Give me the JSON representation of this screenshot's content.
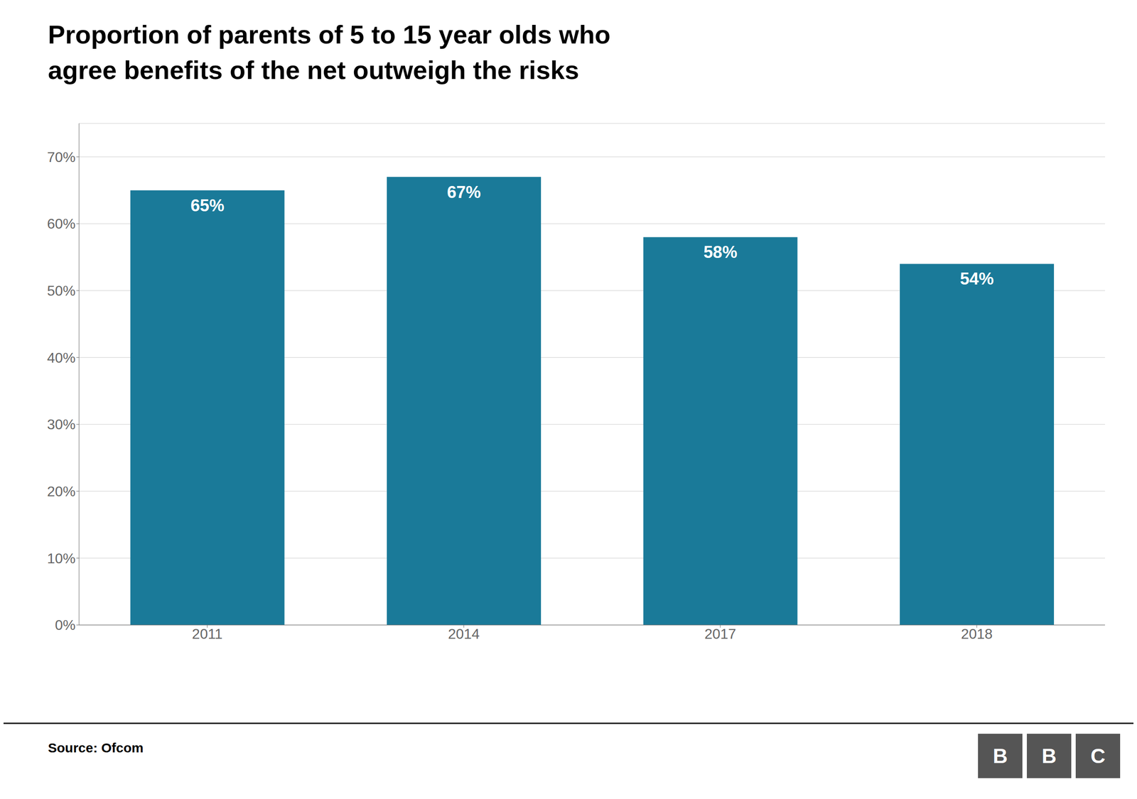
{
  "chart_data": {
    "type": "bar",
    "title": "Proportion of parents of 5 to 15 year olds who\nagree benefits of the net outweigh the risks",
    "categories": [
      "2011",
      "2014",
      "2017",
      "2018"
    ],
    "values": [
      65,
      67,
      58,
      54
    ],
    "value_labels": [
      "65%",
      "67%",
      "58%",
      "54%"
    ],
    "data_labels": true,
    "color": "#1a7a99",
    "ylim": [
      0,
      75
    ],
    "yticks": [
      {
        "value": 0,
        "label": "0%"
      },
      {
        "value": 10,
        "label": "10%"
      },
      {
        "value": 20,
        "label": "20%"
      },
      {
        "value": 30,
        "label": "30%"
      },
      {
        "value": 40,
        "label": "40%"
      },
      {
        "value": 50,
        "label": "50%"
      },
      {
        "value": 60,
        "label": "60%"
      },
      {
        "value": 70,
        "label": "70%"
      }
    ],
    "grid": true,
    "annotations": [
      "Source: Ofcom",
      "BBC"
    ]
  }
}
